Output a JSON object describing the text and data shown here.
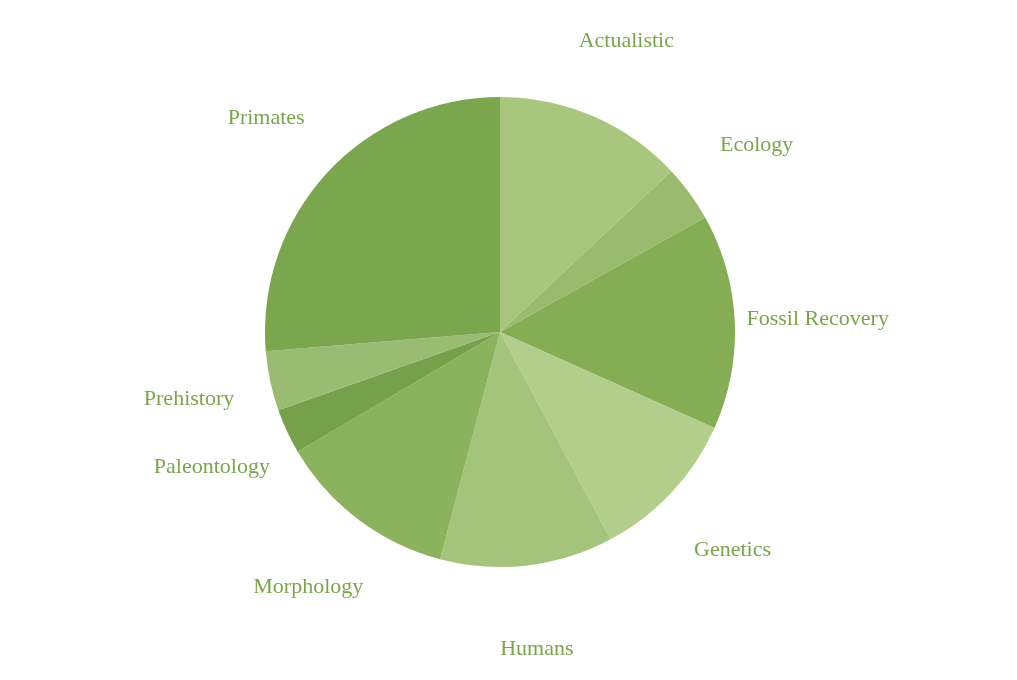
{
  "chart_data": {
    "type": "pie",
    "categories": [
      "Actualistic",
      "Ecology",
      "Fossil Recovery",
      "Genetics",
      "Humans",
      "Morphology",
      "Paleontology",
      "Prehistory",
      "Primates"
    ],
    "values": [
      13.0,
      3.9,
      14.8,
      10.5,
      11.9,
      12.4,
      3.1,
      4.1,
      26.3
    ],
    "colors": [
      "#a8c67c",
      "#9abb6e",
      "#84ad54",
      "#b2ce8a",
      "#a4c37b",
      "#8bb35d",
      "#74a149",
      "#99bc72",
      "#7aa74d"
    ],
    "legend": false
  }
}
